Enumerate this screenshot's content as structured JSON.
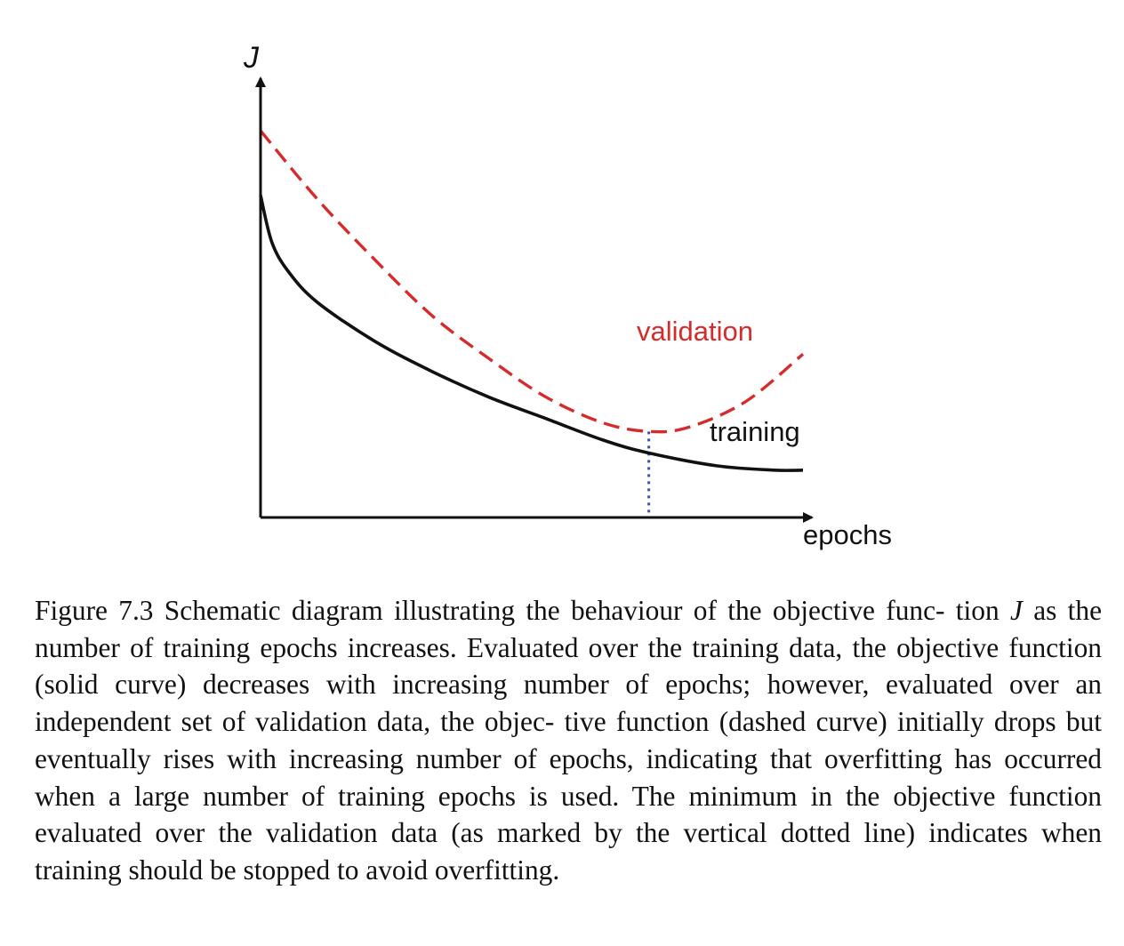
{
  "chart_data": {
    "type": "line",
    "xlabel": "epochs",
    "ylabel": "J",
    "x_range": [
      0,
      1
    ],
    "y_range": [
      0,
      1
    ],
    "grid": false,
    "ticks": false,
    "series": [
      {
        "name": "validation",
        "style": "dashed",
        "color": "#d62b2b",
        "x": [
          0.0,
          0.1,
          0.2,
          0.3,
          0.4,
          0.5,
          0.6,
          0.68,
          0.75,
          0.85,
          0.95
        ],
        "y": [
          0.9,
          0.74,
          0.6,
          0.47,
          0.37,
          0.28,
          0.22,
          0.2,
          0.21,
          0.27,
          0.38
        ]
      },
      {
        "name": "training",
        "style": "solid",
        "color": "#111111",
        "x": [
          0.0,
          0.02,
          0.05,
          0.1,
          0.2,
          0.3,
          0.4,
          0.5,
          0.6,
          0.68,
          0.8,
          0.9,
          0.95
        ],
        "y": [
          0.75,
          0.64,
          0.57,
          0.5,
          0.41,
          0.34,
          0.28,
          0.23,
          0.18,
          0.15,
          0.12,
          0.11,
          0.11
        ]
      }
    ],
    "annotations": [
      {
        "type": "vertical-dotted-line",
        "x": 0.68,
        "color": "#3a4fb8"
      }
    ]
  },
  "figure": {
    "caption_segments": [
      {
        "text": "Figure 7.3 Schematic diagram illustrating the behaviour of the objective func- tion ",
        "math": false
      },
      {
        "text": "J",
        "math": true
      },
      {
        "text": " as the number of training epochs increases. Evaluated over the training data, the objective function (solid curve) decreases with increasing number of epochs; however, evaluated over an independent set of validation data, the objec- tive function (dashed curve) initially drops but eventually rises with increasing number of epochs, indicating that overfitting has occurred when a large number of training epochs is used. The minimum in the objective function evaluated over the validation data (as marked by the vertical dotted line) indicates when training should be stopped to avoid overfitting.",
        "math": false
      }
    ]
  }
}
